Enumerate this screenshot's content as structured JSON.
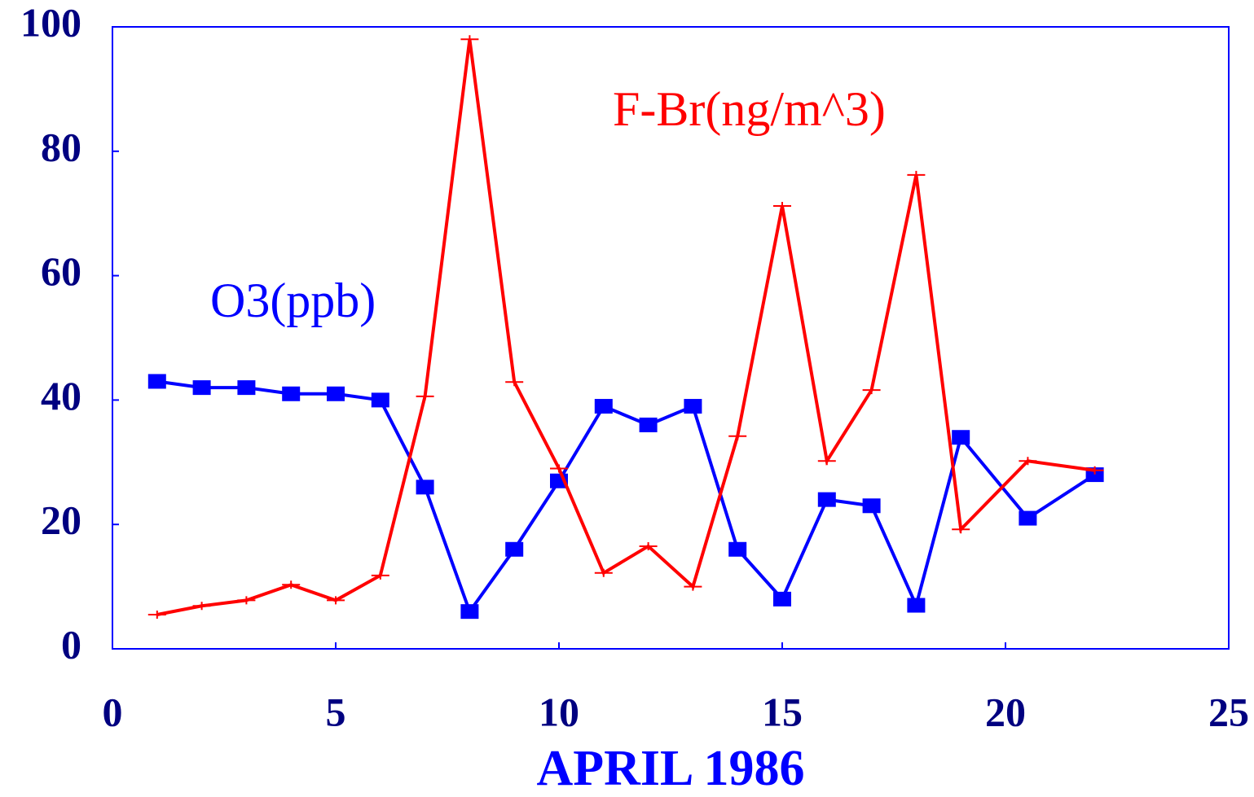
{
  "chart_data": {
    "type": "line",
    "x_label": "APRIL 1986",
    "x": [
      1,
      2,
      3,
      4,
      5,
      6,
      7,
      8,
      9,
      10,
      11,
      12,
      13,
      14,
      15,
      16,
      17,
      18,
      19,
      20.5,
      22
    ],
    "series": [
      {
        "name": "O3(ppb)",
        "color": "#0000ff",
        "marker": "square",
        "values": [
          43,
          42,
          42,
          41,
          41,
          40,
          26,
          6,
          16,
          27,
          39,
          36,
          39,
          16,
          8,
          24,
          23,
          7,
          34,
          21,
          28
        ]
      },
      {
        "name": "F-Br(ng/m^3)",
        "color": "#ff0000",
        "marker": "plus",
        "values": [
          5.5,
          6.9,
          7.8,
          10.3,
          7.8,
          11.8,
          40.6,
          98,
          42.9,
          29,
          12.2,
          16.5,
          10,
          34.2,
          71.2,
          30.2,
          41.6,
          76.2,
          19.2,
          30.2,
          28.7
        ]
      }
    ],
    "xlim": [
      0,
      25
    ],
    "xticks": [
      0,
      5,
      10,
      15,
      20,
      25
    ],
    "ylim": [
      0,
      100
    ],
    "yticks": [
      0,
      20,
      40,
      60,
      80,
      100
    ]
  }
}
